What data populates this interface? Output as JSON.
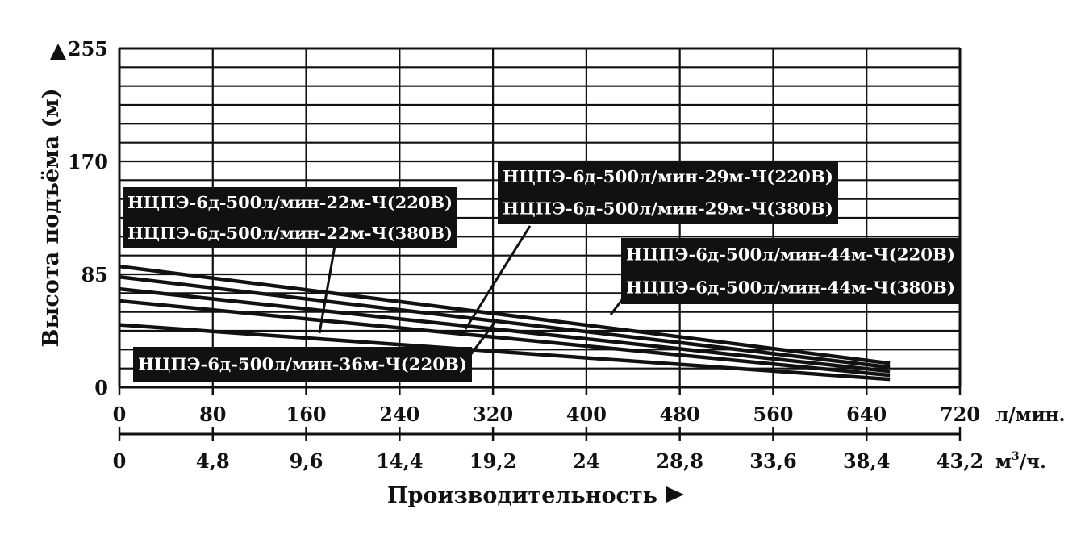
{
  "chart_data": {
    "type": "line",
    "ylabel": "Высота подъёма (м)",
    "xlabel": "Производительность",
    "x_unit_primary": "л/мин.",
    "x_unit_secondary": "м³/ч.",
    "x_unit_secondary_base": "м",
    "x_unit_secondary_sup": "3",
    "x_unit_secondary_tail": "/ч.",
    "xlim": [
      0,
      720
    ],
    "ylim": [
      0,
      255
    ],
    "x_ticks_primary": [
      "0",
      "80",
      "160",
      "240",
      "320",
      "400",
      "480",
      "560",
      "640",
      "720"
    ],
    "x_ticks_secondary": [
      "0",
      "4,8",
      "9,6",
      "14,4",
      "19,2",
      "24",
      "28,8",
      "33,6",
      "38,4",
      "43,2"
    ],
    "y_ticks": [
      "0",
      "85",
      "170",
      "255"
    ],
    "grid": true,
    "series": [
      {
        "name": "НЦПЭ-6д-500л/мин-44м-Ч(220В)",
        "x": [
          0,
          660
        ],
        "y": [
          91,
          18
        ]
      },
      {
        "name": "НЦПЭ-6д-500л/мин-36м-Ч(220В)",
        "x": [
          0,
          660
        ],
        "y": [
          83,
          15
        ]
      },
      {
        "name": "НЦПЭ-6д-500л/мин-29м-Ч(220В)",
        "x": [
          0,
          660
        ],
        "y": [
          74,
          12
        ]
      },
      {
        "name": "НЦПЭ-6д-500л/мин-22м-Ч(220В)",
        "x": [
          0,
          660
        ],
        "y": [
          65,
          9
        ]
      },
      {
        "name": "НЦПЭ-6д-500л/мин-22м-Ч(380В)",
        "x": [
          0,
          660
        ],
        "y": [
          47,
          6
        ]
      }
    ],
    "legend_boxes": [
      {
        "lines": [
          "НЦПЭ-6д-500л/мин-22м-Ч(220В)",
          "НЦПЭ-6д-500л/мин-22м-Ч(380В)"
        ]
      },
      {
        "lines": [
          "НЦПЭ-6д-500л/мин-29м-Ч(220В)",
          "НЦПЭ-6д-500л/мин-29м-Ч(380В)"
        ]
      },
      {
        "lines": [
          "НЦПЭ-6д-500л/мин-44м-Ч(220В)",
          "НЦПЭ-6д-500л/мин-44м-Ч(380В)"
        ]
      },
      {
        "lines": [
          "НЦПЭ-6д-500л/мин-36м-Ч(220В)"
        ]
      }
    ],
    "colors": {
      "line": "#111111",
      "box": "#111111",
      "box_text": "#ffffff",
      "grid": "#111111"
    }
  }
}
